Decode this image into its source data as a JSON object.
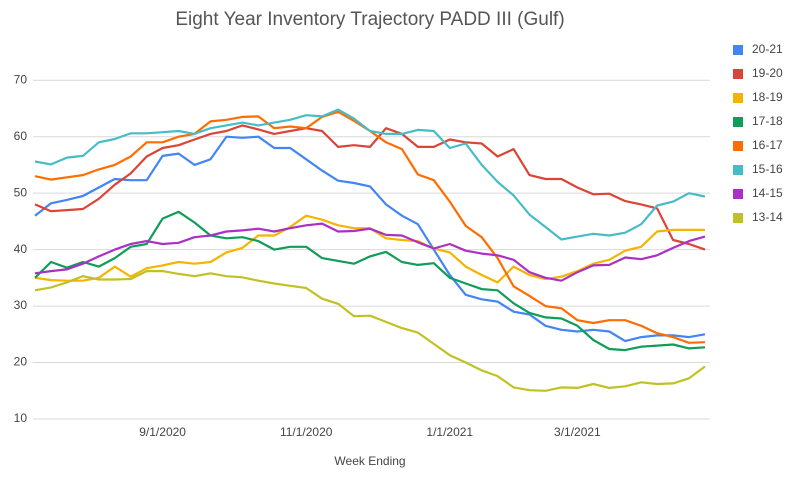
{
  "chart_data": {
    "type": "line",
    "title": "Eight Year Inventory Trajectory PADD III (Gulf)",
    "x_label": "Week Ending",
    "categories": [
      null,
      null,
      null,
      null,
      null,
      null,
      null,
      null,
      "9/1/2020",
      null,
      null,
      null,
      null,
      null,
      null,
      null,
      null,
      "11/1/2020",
      null,
      null,
      null,
      null,
      null,
      null,
      null,
      null,
      "1/1/2021",
      null,
      null,
      null,
      null,
      null,
      null,
      null,
      "3/1/2021",
      null,
      null,
      null,
      null,
      null,
      null,
      null,
      null
    ],
    "ylim": [
      10,
      75
    ],
    "yticks": [
      10,
      20,
      30,
      40,
      50,
      60,
      70
    ],
    "grid": true,
    "legend": "right",
    "series": [
      {
        "name": "20-21",
        "color": "#4285f4",
        "values": [
          46,
          48.2,
          48.8,
          49.5,
          51,
          52.5,
          52.3,
          52.3,
          56.6,
          57,
          55,
          56,
          60,
          59.8,
          60,
          58,
          58,
          56,
          54,
          52.2,
          51.8,
          51.2,
          48,
          46,
          44.5,
          40,
          35.5,
          32,
          31.2,
          30.8,
          29,
          28.5,
          26.5,
          25.8,
          25.5,
          25.8,
          25.5,
          23.8,
          24.5,
          24.8,
          24.8,
          24.5,
          25
        ]
      },
      {
        "name": "19-20",
        "color": "#db4437",
        "values": [
          48,
          46.8,
          47,
          47.2,
          49,
          51.5,
          53.5,
          56.5,
          58,
          58.5,
          59.5,
          60.5,
          61,
          62,
          61.3,
          60.5,
          61,
          61.5,
          61,
          58.2,
          58.5,
          58.2,
          61.5,
          60.5,
          58.2,
          58.2,
          59.5,
          59,
          58.8,
          56.5,
          57.8,
          53.2,
          52.5,
          52.5,
          51,
          49.8,
          49.9,
          48.6,
          48,
          47.3,
          41.7,
          41,
          40
        ]
      },
      {
        "name": "18-19",
        "color": "#f4b400",
        "values": [
          35,
          34.6,
          34.5,
          34.5,
          35,
          37,
          35.2,
          36.7,
          37.2,
          37.8,
          37.5,
          37.8,
          39.5,
          40.3,
          42.5,
          42.5,
          44,
          46,
          45.3,
          44.3,
          43.8,
          43.8,
          42,
          41.7,
          41.5,
          40.2,
          39.5,
          37,
          35.5,
          34.2,
          37,
          35.5,
          34.8,
          35.2,
          36.2,
          37.5,
          38.2,
          39.8,
          40.5,
          43.2,
          43.5,
          43.5,
          43.5
        ]
      },
      {
        "name": "17-18",
        "color": "#0f9d58",
        "values": [
          35,
          37.8,
          36.8,
          37.8,
          37,
          38.5,
          40.5,
          41,
          45.5,
          46.7,
          44.8,
          42.5,
          42,
          42.2,
          41.5,
          40,
          40.5,
          40.5,
          38.5,
          38,
          37.5,
          38.8,
          39.6,
          37.8,
          37.3,
          37.6,
          35,
          34,
          33,
          32.8,
          30.5,
          28.8,
          28,
          27.8,
          26.5,
          24,
          22.4,
          22.2,
          22.8,
          23,
          23.2,
          22.5,
          22.7
        ]
      },
      {
        "name": "16-17",
        "color": "#ff6d01",
        "values": [
          53,
          52.4,
          52.8,
          53.2,
          54.2,
          55,
          56.5,
          59,
          59,
          60,
          60.5,
          62.7,
          63,
          63.5,
          63.6,
          61.5,
          61.8,
          61.5,
          63.5,
          64.4,
          62.8,
          61,
          59,
          57.8,
          53.3,
          52.3,
          48.5,
          44.2,
          42.2,
          38.5,
          33.5,
          31.8,
          30,
          29.6,
          27.5,
          27,
          27.5,
          27.5,
          26.5,
          25.2,
          24.5,
          23.5,
          23.6
        ]
      },
      {
        "name": "15-16",
        "color": "#46bdc6",
        "values": [
          55.6,
          55.1,
          56.3,
          56.6,
          59,
          59.6,
          60.6,
          60.6,
          60.8,
          61,
          60.5,
          61.5,
          62,
          62.5,
          62,
          62.5,
          63,
          63.8,
          63.6,
          64.8,
          63.2,
          61,
          60.5,
          60.5,
          61.2,
          61,
          58,
          58.8,
          55,
          52,
          49.6,
          46.2,
          44,
          41.8,
          42.3,
          42.8,
          42.5,
          43,
          44.5,
          47.8,
          48.5,
          50,
          49.4
        ]
      },
      {
        "name": "14-15",
        "color": "#ab30c4",
        "values": [
          35.8,
          36.2,
          36.5,
          37.5,
          38.8,
          40,
          41,
          41.5,
          41,
          41.2,
          42.2,
          42.5,
          43.2,
          43.4,
          43.7,
          43.2,
          43.8,
          44.3,
          44.6,
          43.2,
          43.3,
          43.7,
          42.6,
          42.5,
          41.3,
          40.2,
          41,
          39.8,
          39.3,
          39,
          38.2,
          36,
          35,
          34.5,
          36,
          37.2,
          37.3,
          38.6,
          38.3,
          39,
          40.3,
          41.5,
          42.3
        ]
      },
      {
        "name": "13-14",
        "color": "#c0c223",
        "values": [
          32.8,
          33.3,
          34.2,
          35.3,
          34.7,
          34.7,
          34.8,
          36.2,
          36.2,
          35.7,
          35.3,
          35.8,
          35.3,
          35.1,
          34.5,
          34,
          33.6,
          33.2,
          31.3,
          30.4,
          28.2,
          28.3,
          27.2,
          26.1,
          25.3,
          23.3,
          21.3,
          20,
          18.6,
          17.6,
          15.6,
          15.1,
          15,
          15.6,
          15.5,
          16.2,
          15.5,
          15.8,
          16.5,
          16.2,
          16.3,
          17.2,
          19.3
        ]
      }
    ]
  }
}
